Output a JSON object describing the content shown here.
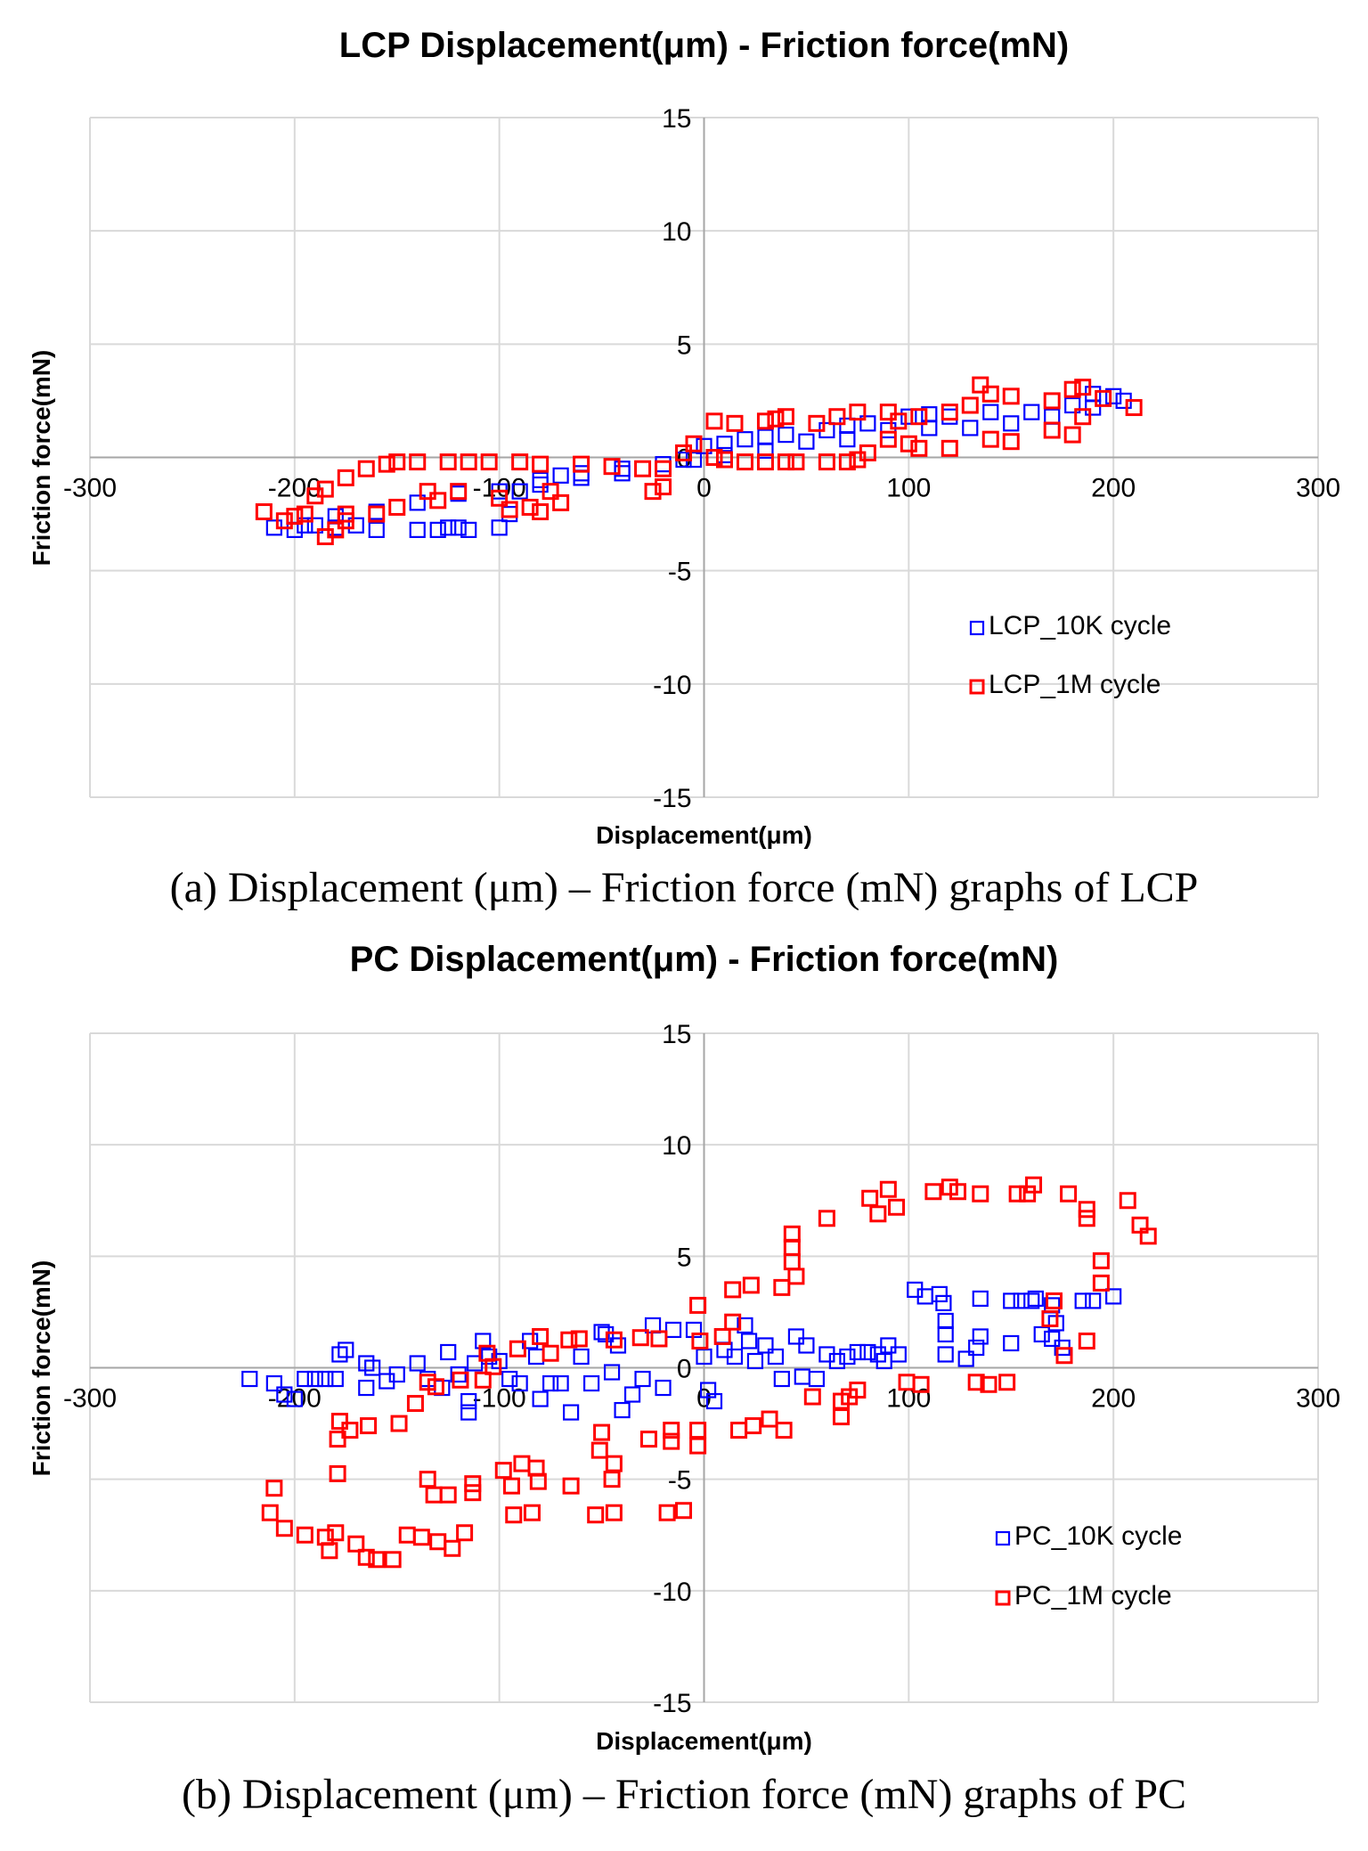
{
  "chart_data": [
    {
      "type": "scatter",
      "title": "LCP Displacement(μm) - Friction force(mN)",
      "caption": "(a) Displacement (μm) – Friction force (mN) graphs of LCP",
      "xlabel": "Displacement(μm)",
      "ylabel": "Friction force(mN)",
      "xlim": [
        -300,
        300
      ],
      "ylim": [
        -15,
        15
      ],
      "xticks": [
        -300,
        -200,
        -100,
        0,
        100,
        200,
        300
      ],
      "yticks": [
        -15,
        -10,
        -5,
        0,
        5,
        10,
        15
      ],
      "grid": true,
      "legend_position": "bottom-right",
      "marker": "open-square",
      "series": [
        {
          "name": "LCP_10K cycle",
          "color": "#0000ff",
          "x": [
            -210,
            -200,
            -190,
            -180,
            -170,
            -160,
            -140,
            -130,
            -125,
            -120,
            -115,
            -100,
            -95,
            -90,
            -80,
            -70,
            -60,
            -40,
            -20,
            -10,
            0,
            10,
            20,
            30,
            40,
            60,
            70,
            80,
            100,
            110,
            120,
            140,
            160,
            180,
            190,
            200,
            205,
            190,
            170,
            150,
            130,
            110,
            90,
            70,
            50,
            30,
            10,
            -5,
            -20,
            -40,
            -60,
            -80,
            -100,
            -120,
            -140,
            -160,
            -180,
            -195
          ],
          "y": [
            -3.1,
            -3.2,
            -3,
            -3.1,
            -3,
            -3.2,
            -3.2,
            -3.2,
            -3.1,
            -3.1,
            -3.2,
            -3.1,
            -2.5,
            -1.5,
            -1,
            -0.8,
            -0.7,
            -0.5,
            -0.3,
            -0.1,
            0.5,
            0.6,
            0.8,
            0.9,
            1,
            1.2,
            1.4,
            1.5,
            1.8,
            1.9,
            1.8,
            2,
            2,
            2.3,
            2.8,
            2.7,
            2.5,
            2.2,
            1.8,
            1.5,
            1.3,
            1.3,
            1.2,
            0.8,
            0.7,
            0.3,
            0.1,
            -0.1,
            -0.5,
            -0.7,
            -0.9,
            -1.2,
            -1.5,
            -1.6,
            -2,
            -2.4,
            -2.6,
            -3
          ]
        },
        {
          "name": "LCP_1M cycle",
          "color": "#ff0000",
          "x": [
            -215,
            -205,
            -195,
            -185,
            -180,
            -175,
            -190,
            -185,
            -175,
            -165,
            -155,
            -150,
            -140,
            -125,
            -115,
            -105,
            -90,
            -80,
            -60,
            -45,
            -30,
            -20,
            -10,
            -5,
            5,
            15,
            30,
            35,
            40,
            55,
            65,
            75,
            90,
            95,
            105,
            120,
            130,
            135,
            140,
            150,
            170,
            180,
            185,
            195,
            210,
            185,
            180,
            170,
            150,
            140,
            120,
            105,
            100,
            90,
            80,
            75,
            70,
            60,
            45,
            40,
            30,
            20,
            10,
            5,
            -20,
            -25,
            -70,
            -75,
            -80,
            -85,
            -95,
            -100,
            -120,
            -130,
            -135,
            -150,
            -160,
            -175,
            -200
          ],
          "y": [
            -2.4,
            -2.8,
            -2.5,
            -3.5,
            -3.2,
            -2.5,
            -1.7,
            -1.4,
            -0.9,
            -0.5,
            -0.3,
            -0.2,
            -0.2,
            -0.2,
            -0.2,
            -0.2,
            -0.2,
            -0.3,
            -0.3,
            -0.4,
            -0.5,
            -0.5,
            0.2,
            0.6,
            1.6,
            1.5,
            1.6,
            1.7,
            1.8,
            1.5,
            1.8,
            2,
            2,
            1.6,
            1.8,
            2,
            2.3,
            3.2,
            2.8,
            2.7,
            2.5,
            3,
            3.1,
            2.6,
            2.2,
            1.8,
            1,
            1.2,
            0.7,
            0.8,
            0.4,
            0.4,
            0.6,
            0.8,
            0.2,
            -0.1,
            -0.2,
            -0.2,
            -0.2,
            -0.2,
            -0.2,
            -0.2,
            -0.1,
            0,
            -1.3,
            -1.5,
            -2,
            -1.5,
            -2.4,
            -2.2,
            -2.3,
            -1.8,
            -1.5,
            -1.9,
            -1.5,
            -2.2,
            -2.5,
            -2.8,
            -2.6
          ]
        }
      ]
    },
    {
      "type": "scatter",
      "title": "PC Displacement(μm) - Friction force(mN)",
      "caption": "(b) Displacement (μm) – Friction force (mN) graphs of PC",
      "xlabel": "Displacement(μm)",
      "ylabel": "Friction force(mN)",
      "xlim": [
        -300,
        300
      ],
      "ylim": [
        -15,
        15
      ],
      "xticks": [
        -300,
        -200,
        -100,
        0,
        100,
        200,
        300
      ],
      "yticks": [
        -15,
        -10,
        -5,
        0,
        5,
        10,
        15
      ],
      "grid": true,
      "legend_position": "bottom-right",
      "marker": "open-square",
      "series": [
        {
          "name": "PC_10K cycle",
          "color": "#0000ff",
          "x": [
            -222,
            -210,
            -205,
            -200,
            -195,
            -190,
            -185,
            -180,
            -178,
            -175,
            -165,
            -162,
            -165,
            -155,
            -150,
            -140,
            -135,
            -128,
            -125,
            -120,
            -115,
            -115,
            -112,
            -108,
            -105,
            -100,
            -95,
            -90,
            -85,
            -82,
            -80,
            -75,
            -70,
            -65,
            -60,
            -55,
            -50,
            -48,
            -45,
            -42,
            -40,
            -35,
            -30,
            -25,
            -20,
            -15,
            -5,
            0,
            2,
            5,
            10,
            15,
            20,
            22,
            25,
            30,
            35,
            38,
            45,
            48,
            50,
            55,
            60,
            65,
            70,
            75,
            80,
            85,
            88,
            90,
            95,
            103,
            108,
            115,
            117,
            118,
            118,
            118,
            128,
            133,
            135,
            135,
            150,
            155,
            160,
            162,
            170,
            172,
            170,
            165,
            175,
            185,
            190,
            200,
            150
          ],
          "y": [
            -0.5,
            -0.7,
            -1.2,
            -1.4,
            -0.5,
            -0.5,
            -0.5,
            -0.5,
            0.6,
            0.8,
            0.2,
            0,
            -0.9,
            -0.6,
            -0.3,
            0.2,
            -0.5,
            -0.9,
            0.7,
            -0.3,
            -1.5,
            -2,
            0.2,
            1.2,
            0.5,
            0.3,
            -0.5,
            -0.7,
            1.2,
            0.5,
            -1.4,
            -0.7,
            -0.7,
            -2,
            0.5,
            -0.7,
            1.6,
            1.5,
            -0.2,
            1,
            -1.9,
            -1.2,
            -0.5,
            1.9,
            -0.9,
            1.7,
            1.7,
            0.5,
            -1,
            -1.5,
            0.8,
            0.5,
            1.9,
            1.2,
            0.3,
            1,
            0.5,
            -0.5,
            1.4,
            -0.4,
            1,
            -0.5,
            0.6,
            0.3,
            0.5,
            0.7,
            0.7,
            0.6,
            0.3,
            1,
            0.6,
            3.5,
            3.2,
            3.3,
            2.9,
            2.1,
            1.5,
            0.6,
            0.4,
            0.9,
            1.4,
            3.1,
            3,
            3,
            3,
            3.1,
            2.8,
            2,
            1.3,
            1.5,
            0.9,
            3,
            3,
            3.2,
            1.1
          ]
        },
        {
          "name": "PC_1M cycle",
          "color": "#ff0000",
          "x": [
            -210,
            -212,
            -205,
            -195,
            -185,
            -183,
            -180,
            -170,
            -165,
            -160,
            -152,
            -145,
            -138,
            -130,
            -123,
            -117,
            -179,
            -179,
            -173,
            -178,
            -164,
            -149,
            -141,
            -135,
            -131,
            -135,
            -132,
            -125,
            -113,
            -113,
            -98,
            -94,
            -89,
            -82,
            -81,
            -65,
            -51,
            -50,
            -44,
            -45,
            -27,
            -16,
            -16,
            -3,
            -3,
            17,
            24,
            32,
            39,
            53,
            67,
            67,
            71,
            75,
            99,
            106,
            133,
            139,
            148,
            -93,
            -84,
            -53,
            -44,
            -18,
            -10,
            -3,
            14,
            23,
            38,
            45,
            43,
            43,
            43,
            60,
            81,
            85,
            90,
            94,
            112,
            120,
            124,
            135,
            153,
            158,
            161,
            178,
            187,
            187,
            207,
            213,
            217,
            194,
            194,
            171,
            169,
            187,
            176,
            14,
            9,
            -2,
            -22,
            -31,
            -44,
            -61,
            -66,
            -80,
            -91,
            -75,
            -106,
            -103,
            -108,
            -119
          ],
          "y": [
            -5.4,
            -6.5,
            -7.2,
            -7.5,
            -7.6,
            -8.2,
            -7.4,
            -7.9,
            -8.5,
            -8.6,
            -8.6,
            -7.5,
            -7.6,
            -7.8,
            -8.1,
            -7.4,
            -3.2,
            -4.75,
            -2.8,
            -2.4,
            -2.6,
            -2.5,
            -1.6,
            -0.65,
            -0.85,
            -5,
            -5.7,
            -5.7,
            -5.6,
            -5.2,
            -4.6,
            -5.3,
            -4.3,
            -4.5,
            -5.1,
            -5.3,
            -3.7,
            -2.9,
            -4.3,
            -5,
            -3.2,
            -2.8,
            -3.3,
            -2.8,
            -3.5,
            -2.8,
            -2.6,
            -2.3,
            -2.8,
            -1.3,
            -2.2,
            -1.5,
            -1.3,
            -1,
            -0.65,
            -0.75,
            -0.65,
            -0.75,
            -0.65,
            -6.6,
            -6.5,
            -6.6,
            -6.5,
            -6.5,
            -6.4,
            2.8,
            3.5,
            3.7,
            3.6,
            4.1,
            4.75,
            5.4,
            6,
            6.7,
            7.6,
            6.9,
            8,
            7.2,
            7.9,
            8.1,
            7.9,
            7.8,
            7.8,
            7.8,
            8.2,
            7.8,
            7.1,
            6.7,
            7.5,
            6.4,
            5.9,
            4.8,
            3.8,
            3,
            2.2,
            1.2,
            0.55,
            2.05,
            1.4,
            1.2,
            1.3,
            1.35,
            1.25,
            1.3,
            1.25,
            1.4,
            0.85,
            0.65,
            0.65,
            0.05,
            -0.55,
            -0.55
          ]
        }
      ]
    }
  ]
}
